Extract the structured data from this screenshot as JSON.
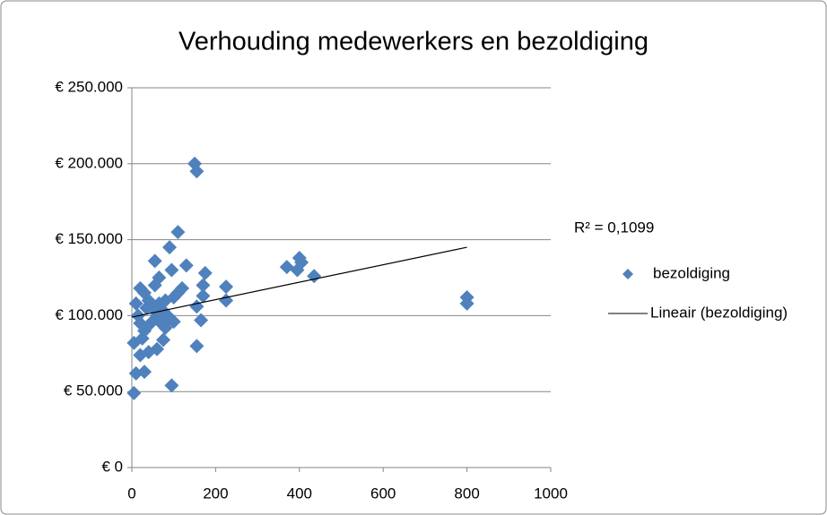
{
  "chart_data": {
    "type": "scatter",
    "title": "Verhouding medewerkers en bezoldiging",
    "annotation": "R² = 0,1099",
    "xlim": [
      0,
      1000
    ],
    "xticks": [
      0,
      200,
      400,
      600,
      800,
      1000
    ],
    "ylim": [
      0,
      250000
    ],
    "yticks": [
      {
        "value": 0,
        "label": "€ 0"
      },
      {
        "value": 50000,
        "label": "€ 50.000"
      },
      {
        "value": 100000,
        "label": "€ 100.000"
      },
      {
        "value": 150000,
        "label": "€ 150.000"
      },
      {
        "value": 200000,
        "label": "€ 200.000"
      },
      {
        "value": 250000,
        "label": "€ 250.000"
      }
    ],
    "grid": true,
    "legend": "right",
    "series": [
      {
        "name": "bezoldiging",
        "color": "#4f81bd",
        "type": "scatter",
        "x": [
          150,
          155,
          110,
          90,
          55,
          130,
          95,
          175,
          65,
          120,
          170,
          225,
          225,
          170,
          155,
          165,
          155,
          95,
          5,
          10,
          30,
          5,
          20,
          40,
          60,
          75,
          10,
          20,
          30,
          40,
          50,
          60,
          70,
          80,
          90,
          100,
          110,
          100,
          80,
          20,
          30,
          15,
          25,
          35,
          45,
          55,
          65,
          75,
          85,
          370,
          400,
          395,
          405,
          435,
          800,
          800
        ],
        "values": [
          200000,
          195000,
          155000,
          145000,
          136000,
          133000,
          130000,
          128000,
          125000,
          118000,
          120000,
          119000,
          110000,
          113000,
          106000,
          97000,
          80000,
          54000,
          49000,
          62000,
          63000,
          82000,
          74000,
          76000,
          78000,
          84000,
          108000,
          118000,
          115000,
          110000,
          105000,
          100000,
          95000,
          92000,
          98000,
          96000,
          115000,
          112000,
          110000,
          95000,
          90000,
          100000,
          85000,
          105000,
          95000,
          120000,
          108000,
          103000,
          100000,
          132000,
          138000,
          130000,
          135000,
          126000,
          112000,
          108000
        ]
      },
      {
        "name": "Lineair (bezoldiging)",
        "color": "#000000",
        "type": "line",
        "x": [
          0,
          800
        ],
        "values": [
          99000,
          145000
        ]
      }
    ]
  }
}
